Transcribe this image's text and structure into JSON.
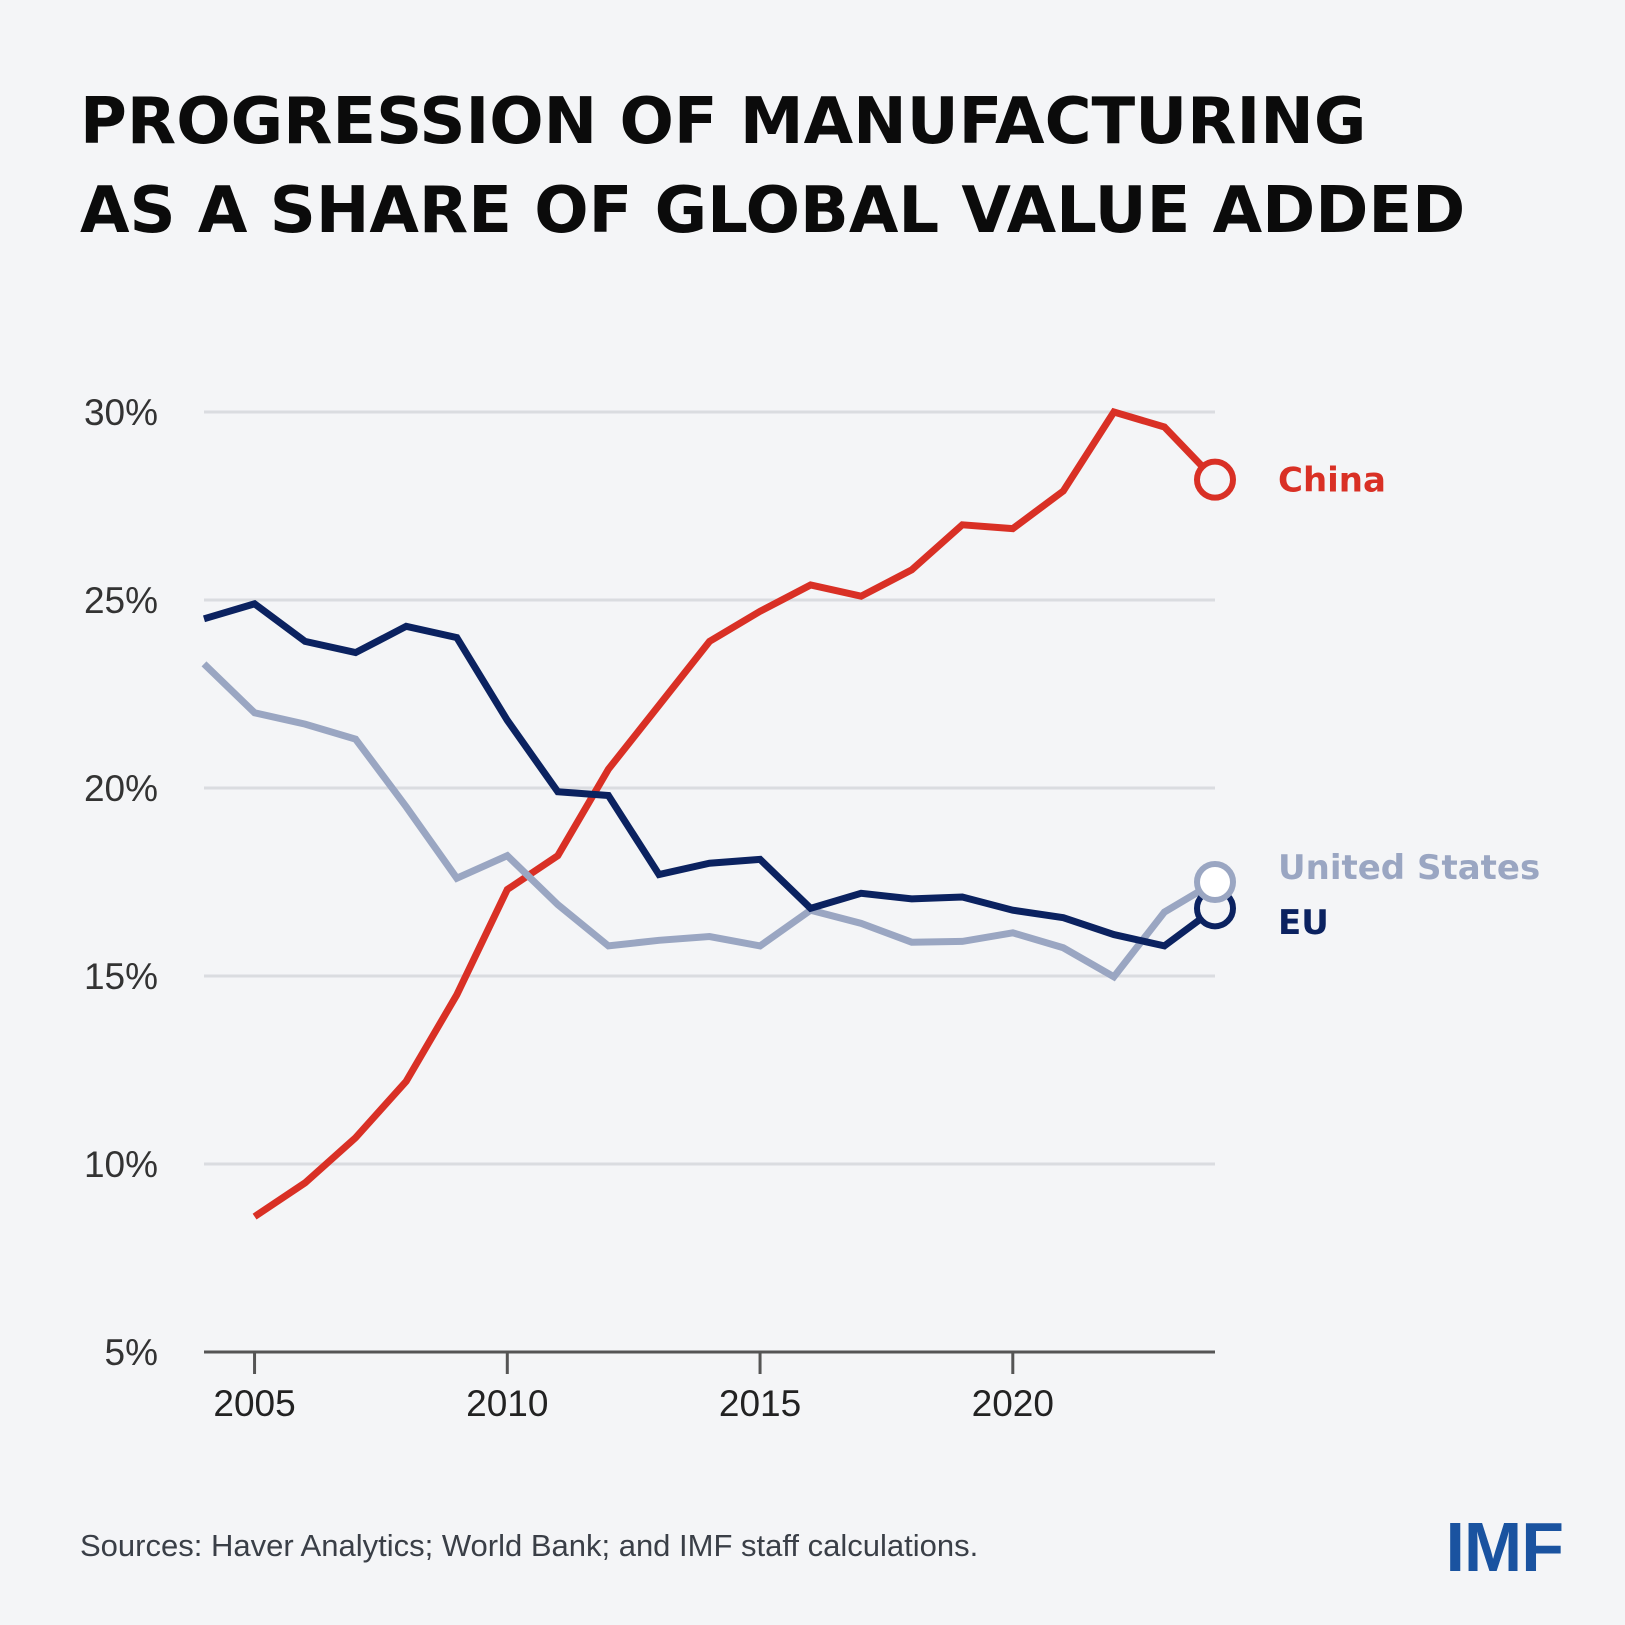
{
  "title": {
    "line1": "PROGRESSION OF MANUFACTURING",
    "line2": "AS A SHARE OF GLOBAL VALUE ADDED"
  },
  "source": "Sources: Haver Analytics; World Bank; and IMF staff calculations.",
  "logo": "IMF",
  "colors": {
    "china": "#d93025",
    "eu": "#0b2260",
    "us": "#9aa6c2",
    "grid": "#dadce0",
    "axis": "#555555",
    "background": "#f4f5f7"
  },
  "chart_data": {
    "type": "line",
    "title": "PROGRESSION OF MANUFACTURING AS A SHARE OF GLOBAL VALUE ADDED",
    "xlabel": "",
    "ylabel": "",
    "xlim": [
      2004,
      2024
    ],
    "ylim": [
      5,
      30
    ],
    "x_ticks": [
      2005,
      2010,
      2015,
      2020
    ],
    "y_ticks": [
      5,
      10,
      15,
      20,
      25,
      30
    ],
    "y_tick_labels": [
      "5%",
      "10%",
      "15%",
      "20%",
      "25%",
      "30%"
    ],
    "grid": true,
    "legend": "direct labels at line ends (right)",
    "series": [
      {
        "name": "China",
        "key": "china",
        "x": [
          2005,
          2006,
          2007,
          2008,
          2009,
          2010,
          2011,
          2012,
          2013,
          2014,
          2015,
          2016,
          2017,
          2018,
          2019,
          2020,
          2021,
          2022,
          2023,
          2024
        ],
        "values": [
          8.6,
          9.5,
          10.7,
          12.2,
          14.5,
          17.3,
          18.2,
          20.5,
          22.2,
          23.9,
          24.7,
          25.4,
          25.1,
          25.8,
          27.0,
          26.9,
          27.9,
          30.0,
          29.6,
          28.2
        ]
      },
      {
        "name": "United States",
        "key": "us",
        "x": [
          2004,
          2005,
          2006,
          2007,
          2008,
          2009,
          2010,
          2011,
          2012,
          2013,
          2014,
          2015,
          2016,
          2017,
          2018,
          2019,
          2020,
          2021,
          2022,
          2023,
          2024
        ],
        "values": [
          23.3,
          22.0,
          21.7,
          21.3,
          19.5,
          17.6,
          18.2,
          16.9,
          15.8,
          15.95,
          16.05,
          15.8,
          16.75,
          16.4,
          15.9,
          15.92,
          16.15,
          15.75,
          14.98,
          16.7,
          17.5
        ]
      },
      {
        "name": "EU",
        "key": "eu",
        "x": [
          2004,
          2005,
          2006,
          2007,
          2008,
          2009,
          2010,
          2011,
          2012,
          2013,
          2014,
          2015,
          2016,
          2017,
          2018,
          2019,
          2020,
          2021,
          2022,
          2023,
          2024
        ],
        "values": [
          24.5,
          24.9,
          23.9,
          23.6,
          24.3,
          24.0,
          21.8,
          19.9,
          19.8,
          17.7,
          18.0,
          18.1,
          16.8,
          17.2,
          17.05,
          17.1,
          16.75,
          16.55,
          16.1,
          15.8,
          16.8
        ]
      }
    ]
  }
}
